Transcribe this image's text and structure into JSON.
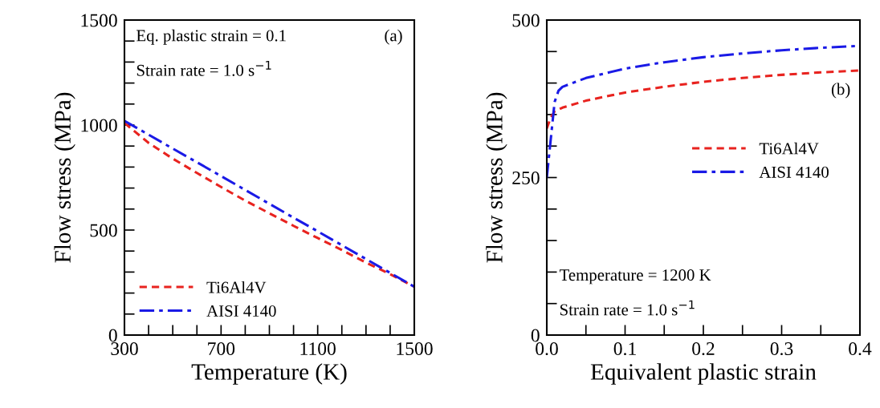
{
  "chart_data": [
    {
      "type": "line",
      "xlabel": "Temperature (K)",
      "ylabel": "Flow stress (MPa)",
      "x": [
        300,
        400,
        500,
        600,
        700,
        800,
        900,
        1000,
        1100,
        1200,
        1300,
        1400,
        1500
      ],
      "series": [
        {
          "name": "Ti6Al4V",
          "color": "#e8231f",
          "line_style": "dashed",
          "values": [
            1010,
            915,
            840,
            772,
            705,
            640,
            580,
            520,
            462,
            405,
            345,
            290,
            230
          ]
        },
        {
          "name": "AISI 4140",
          "color": "#1a1ae6",
          "line_style": "dashdot",
          "values": [
            1020,
            954,
            888,
            823,
            757,
            691,
            625,
            559,
            494,
            428,
            362,
            296,
            230
          ]
        }
      ],
      "xlim": [
        300,
        1500
      ],
      "ylim": [
        0,
        1500
      ],
      "xticks": [
        300,
        {
          "value": 400,
          "label": null
        },
        {
          "value": 500,
          "label": null
        },
        {
          "value": 600,
          "label": null
        },
        700,
        {
          "value": 800,
          "label": null
        },
        {
          "value": 900,
          "label": null
        },
        {
          "value": 1000,
          "label": null
        },
        1100,
        {
          "value": 1200,
          "label": null
        },
        {
          "value": 1300,
          "label": null
        },
        {
          "value": 1400,
          "label": null
        },
        1500
      ],
      "yticks": [
        0,
        {
          "value": 100,
          "label": null
        },
        {
          "value": 200,
          "label": null
        },
        {
          "value": 300,
          "label": null
        },
        {
          "value": 400,
          "label": null
        },
        500,
        {
          "value": 600,
          "label": null
        },
        {
          "value": 700,
          "label": null
        },
        {
          "value": 800,
          "label": null
        },
        {
          "value": 900,
          "label": null
        },
        1000,
        {
          "value": 1100,
          "label": null
        },
        {
          "value": 1200,
          "label": null
        },
        {
          "value": 1300,
          "label": null
        },
        {
          "value": 1400,
          "label": null
        },
        1500
      ],
      "annotations": [
        "Eq. plastic strain = 0.1",
        "Strain rate = 1.0 s$^{−1}$",
        "(a)"
      ],
      "legend": "bottom left",
      "grid": false,
      "marker": "none"
    },
    {
      "type": "line",
      "xlabel": "Equivalent plastic strain",
      "ylabel": "Flow stress (MPa)",
      "series": [
        {
          "name": "Ti6Al4V",
          "color": "#e8231f",
          "line_style": "dashed",
          "x": [
            0,
            0.005,
            0.01,
            0.02,
            0.05,
            0.1,
            0.15,
            0.2,
            0.25,
            0.3,
            0.35,
            0.4
          ],
          "values": [
            328,
            345,
            355,
            361,
            372,
            385,
            394,
            402,
            408,
            413,
            417,
            420
          ]
        },
        {
          "name": "AISI 4140",
          "color": "#1a1ae6",
          "line_style": "dashdot",
          "x": [
            0,
            0.005,
            0.01,
            0.015,
            0.02,
            0.05,
            0.1,
            0.15,
            0.2,
            0.25,
            0.3,
            0.35,
            0.4
          ],
          "values": [
            250,
            310,
            370,
            388,
            394,
            408,
            423,
            433,
            441,
            447,
            452,
            456,
            459
          ]
        }
      ],
      "xlim": [
        0,
        0.4
      ],
      "ylim": [
        0,
        500
      ],
      "xticks": [
        {
          "value": 0,
          "label": "0.0"
        },
        {
          "value": 0.05,
          "label": null
        },
        0.1,
        {
          "value": 0.15,
          "label": null
        },
        0.2,
        {
          "value": 0.25,
          "label": null
        },
        0.3,
        {
          "value": 0.35,
          "label": null
        },
        0.4
      ],
      "yticks": [
        0,
        {
          "value": 50,
          "label": null
        },
        {
          "value": 100,
          "label": null
        },
        {
          "value": 150,
          "label": null
        },
        {
          "value": 200,
          "label": null
        },
        250,
        {
          "value": 300,
          "label": null
        },
        {
          "value": 350,
          "label": null
        },
        {
          "value": 400,
          "label": null
        },
        {
          "value": 450,
          "label": null
        },
        500
      ],
      "annotations": [
        "(b)",
        "Temperature = 1200 K",
        "Strain rate = 1.0 s$^{−1}$"
      ],
      "legend": "right",
      "grid": false,
      "marker": "none"
    }
  ]
}
